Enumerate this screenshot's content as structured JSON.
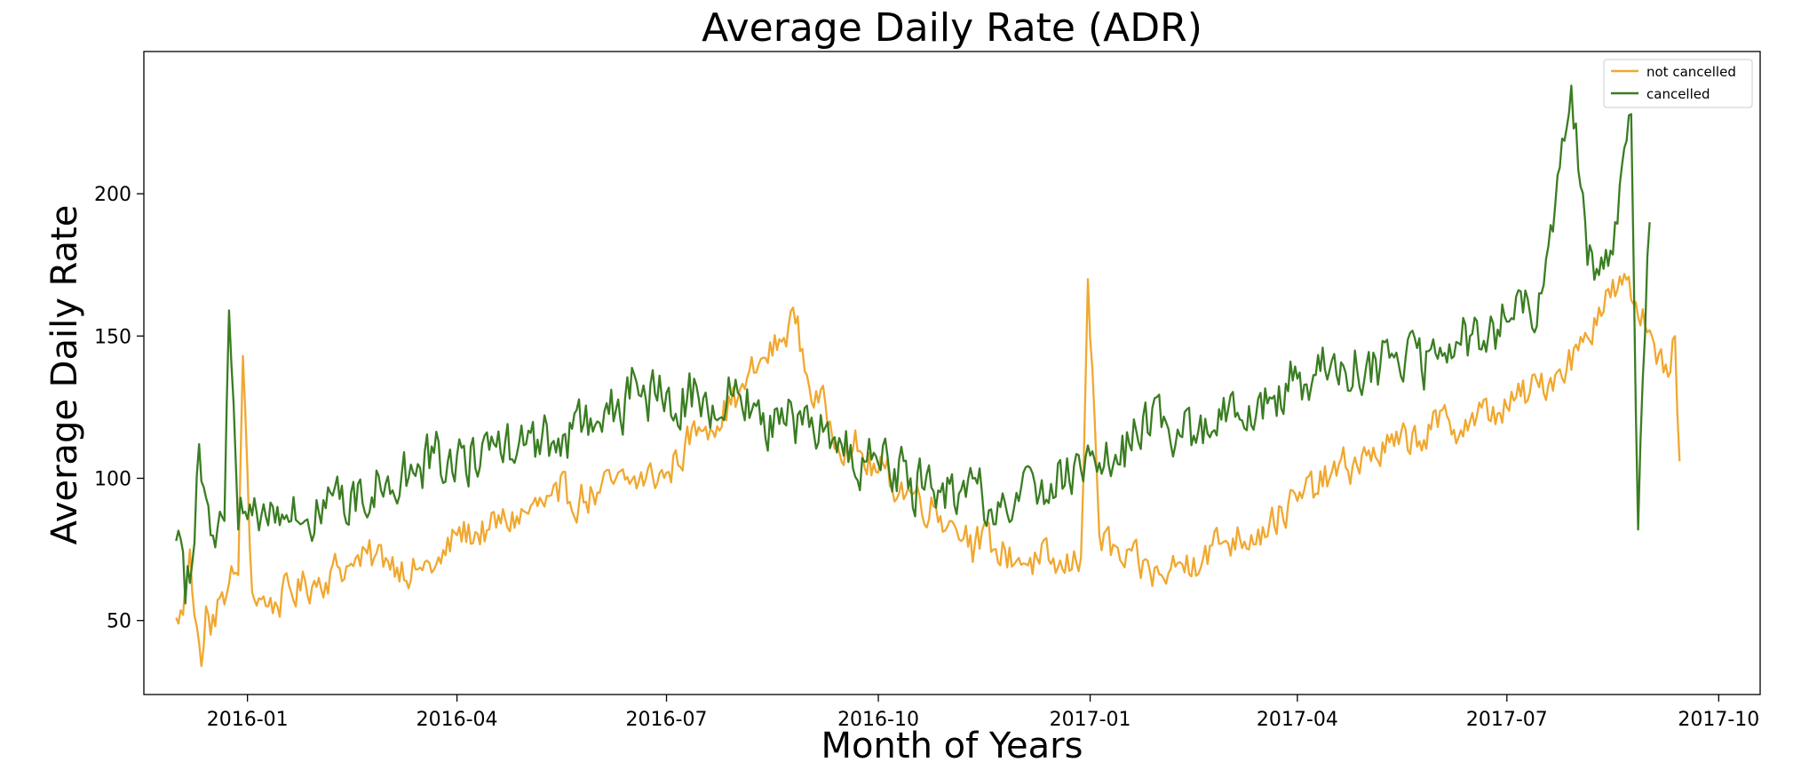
{
  "chart_data": {
    "type": "line",
    "title": "Average Daily Rate (ADR)",
    "xlabel": "Month of Years",
    "ylabel": "Average Daily Rate",
    "xlim": [
      "2015-11-17",
      "2017-10-19"
    ],
    "ylim": [
      24,
      250
    ],
    "x_ticks": [
      "2016-01",
      "2016-04",
      "2016-07",
      "2016-10",
      "2017-01",
      "2017-04",
      "2017-07",
      "2017-10"
    ],
    "y_ticks": [
      50,
      100,
      150,
      200
    ],
    "grid": false,
    "legend_position": "top-right",
    "series": [
      {
        "name": "not cancelled",
        "color": "#f0a830",
        "x_start": "2015-12-01",
        "x_end": "2017-09-14",
        "anchors": [
          [
            "2015-12-01",
            51
          ],
          [
            "2015-12-04",
            52
          ],
          [
            "2015-12-07",
            75
          ],
          [
            "2015-12-10",
            48
          ],
          [
            "2015-12-12",
            34
          ],
          [
            "2015-12-14",
            55
          ],
          [
            "2015-12-16",
            45
          ],
          [
            "2015-12-20",
            58
          ],
          [
            "2015-12-24",
            63
          ],
          [
            "2015-12-28",
            66
          ],
          [
            "2015-12-30",
            143
          ],
          [
            "2016-01-03",
            60
          ],
          [
            "2016-01-10",
            55
          ],
          [
            "2016-01-20",
            60
          ],
          [
            "2016-02-01",
            65
          ],
          [
            "2016-02-15",
            70
          ],
          [
            "2016-03-01",
            72
          ],
          [
            "2016-03-15",
            68
          ],
          [
            "2016-03-25",
            70
          ],
          [
            "2016-04-01",
            80
          ],
          [
            "2016-04-15",
            82
          ],
          [
            "2016-05-01",
            88
          ],
          [
            "2016-05-15",
            92
          ],
          [
            "2016-06-01",
            95
          ],
          [
            "2016-06-15",
            98
          ],
          [
            "2016-07-01",
            102
          ],
          [
            "2016-07-15",
            118
          ],
          [
            "2016-08-01",
            128
          ],
          [
            "2016-08-10",
            140
          ],
          [
            "2016-08-20",
            148
          ],
          [
            "2016-08-25",
            160
          ],
          [
            "2016-09-01",
            132
          ],
          [
            "2016-09-10",
            120
          ],
          [
            "2016-09-20",
            110
          ],
          [
            "2016-10-01",
            102
          ],
          [
            "2016-10-15",
            95
          ],
          [
            "2016-10-25",
            90
          ],
          [
            "2016-11-01",
            85
          ],
          [
            "2016-11-10",
            80
          ],
          [
            "2016-11-20",
            75
          ],
          [
            "2016-12-01",
            72
          ],
          [
            "2016-12-10",
            70
          ],
          [
            "2016-12-20",
            68
          ],
          [
            "2016-12-28",
            72
          ],
          [
            "2016-12-31",
            170
          ],
          [
            "2017-01-05",
            80
          ],
          [
            "2017-01-15",
            70
          ],
          [
            "2017-02-01",
            66
          ],
          [
            "2017-02-15",
            72
          ],
          [
            "2017-03-01",
            78
          ],
          [
            "2017-03-15",
            82
          ],
          [
            "2017-04-01",
            92
          ],
          [
            "2017-04-15",
            100
          ],
          [
            "2017-05-01",
            108
          ],
          [
            "2017-05-15",
            112
          ],
          [
            "2017-06-01",
            118
          ],
          [
            "2017-06-15",
            120
          ],
          [
            "2017-07-01",
            125
          ],
          [
            "2017-07-15",
            132
          ],
          [
            "2017-08-01",
            145
          ],
          [
            "2017-08-10",
            160
          ],
          [
            "2017-08-20",
            168
          ],
          [
            "2017-09-01",
            152
          ],
          [
            "2017-09-08",
            140
          ],
          [
            "2017-09-12",
            150
          ],
          [
            "2017-09-14",
            106
          ]
        ]
      },
      {
        "name": "cancelled",
        "color": "#3a7d22",
        "x_start": "2015-12-01",
        "x_end": "2017-09-01",
        "anchors": [
          [
            "2015-12-01",
            78
          ],
          [
            "2015-12-05",
            56
          ],
          [
            "2015-12-08",
            70
          ],
          [
            "2015-12-11",
            112
          ],
          [
            "2015-12-16",
            80
          ],
          [
            "2015-12-22",
            85
          ],
          [
            "2015-12-24",
            159
          ],
          [
            "2015-12-28",
            82
          ],
          [
            "2016-01-05",
            88
          ],
          [
            "2016-01-20",
            85
          ],
          [
            "2016-02-01",
            88
          ],
          [
            "2016-02-15",
            95
          ],
          [
            "2016-03-01",
            98
          ],
          [
            "2016-03-15",
            105
          ],
          [
            "2016-04-01",
            108
          ],
          [
            "2016-04-15",
            110
          ],
          [
            "2016-05-01",
            112
          ],
          [
            "2016-05-15",
            114
          ],
          [
            "2016-06-01",
            120
          ],
          [
            "2016-06-15",
            128
          ],
          [
            "2016-07-01",
            130
          ],
          [
            "2016-07-15",
            128
          ],
          [
            "2016-08-01",
            130
          ],
          [
            "2016-08-15",
            122
          ],
          [
            "2016-09-01",
            118
          ],
          [
            "2016-09-15",
            112
          ],
          [
            "2016-10-01",
            105
          ],
          [
            "2016-10-15",
            100
          ],
          [
            "2016-11-01",
            98
          ],
          [
            "2016-11-15",
            95
          ],
          [
            "2016-12-01",
            92
          ],
          [
            "2016-12-15",
            98
          ],
          [
            "2017-01-01",
            108
          ],
          [
            "2017-01-15",
            115
          ],
          [
            "2017-02-01",
            118
          ],
          [
            "2017-02-15",
            115
          ],
          [
            "2017-03-01",
            120
          ],
          [
            "2017-03-15",
            128
          ],
          [
            "2017-04-01",
            135
          ],
          [
            "2017-04-15",
            138
          ],
          [
            "2017-05-01",
            140
          ],
          [
            "2017-05-15",
            140
          ],
          [
            "2017-06-01",
            142
          ],
          [
            "2017-06-15",
            150
          ],
          [
            "2017-07-01",
            155
          ],
          [
            "2017-07-15",
            165
          ],
          [
            "2017-07-29",
            238
          ],
          [
            "2017-08-05",
            175
          ],
          [
            "2017-08-15",
            180
          ],
          [
            "2017-08-24",
            228
          ],
          [
            "2017-08-27",
            82
          ],
          [
            "2017-09-01",
            190
          ]
        ]
      }
    ]
  }
}
